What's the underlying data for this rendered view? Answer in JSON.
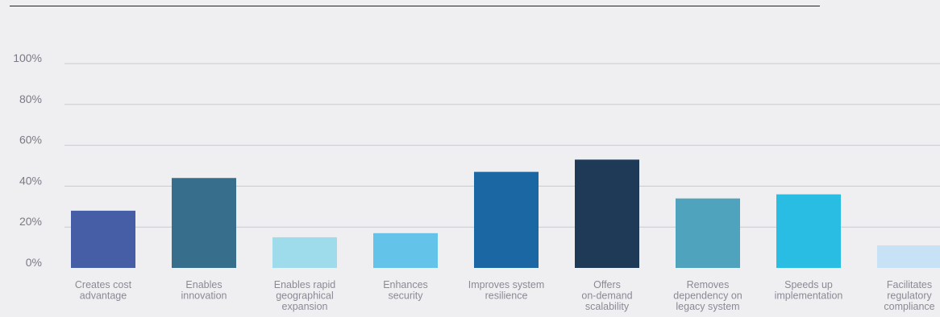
{
  "chart_data": {
    "type": "bar",
    "title": "",
    "xlabel": "",
    "ylabel": "",
    "ylim": [
      0,
      100
    ],
    "yticks": [
      {
        "value": 0,
        "label": "0%"
      },
      {
        "value": 20,
        "label": "20%"
      },
      {
        "value": 40,
        "label": "40%"
      },
      {
        "value": 60,
        "label": "60%"
      },
      {
        "value": 80,
        "label": "80%"
      },
      {
        "value": 100,
        "label": "100%"
      }
    ],
    "grid": true,
    "legend": "none",
    "categories": [
      [
        "Creates cost",
        "advantage"
      ],
      [
        "Enables",
        "innovation"
      ],
      [
        "Enables rapid",
        "geographical",
        "expansion"
      ],
      [
        "Enhances",
        "security"
      ],
      [
        "Improves system",
        "resilience"
      ],
      [
        "Offers",
        "on-demand",
        "scalability"
      ],
      [
        "Removes",
        "dependency on",
        "legacy system"
      ],
      [
        "Speeds up",
        "implementation"
      ],
      [
        "Facilitates",
        "regulatory",
        "compliance"
      ]
    ],
    "values": [
      28,
      44,
      15,
      17,
      47,
      53,
      34,
      36,
      11
    ],
    "colors": [
      "#455ea6",
      "#366e8c",
      "#9edbeb",
      "#63c3e8",
      "#1a67a3",
      "#1e3a57",
      "#4fa3bd",
      "#2abde3",
      "#c6e2f4"
    ]
  }
}
